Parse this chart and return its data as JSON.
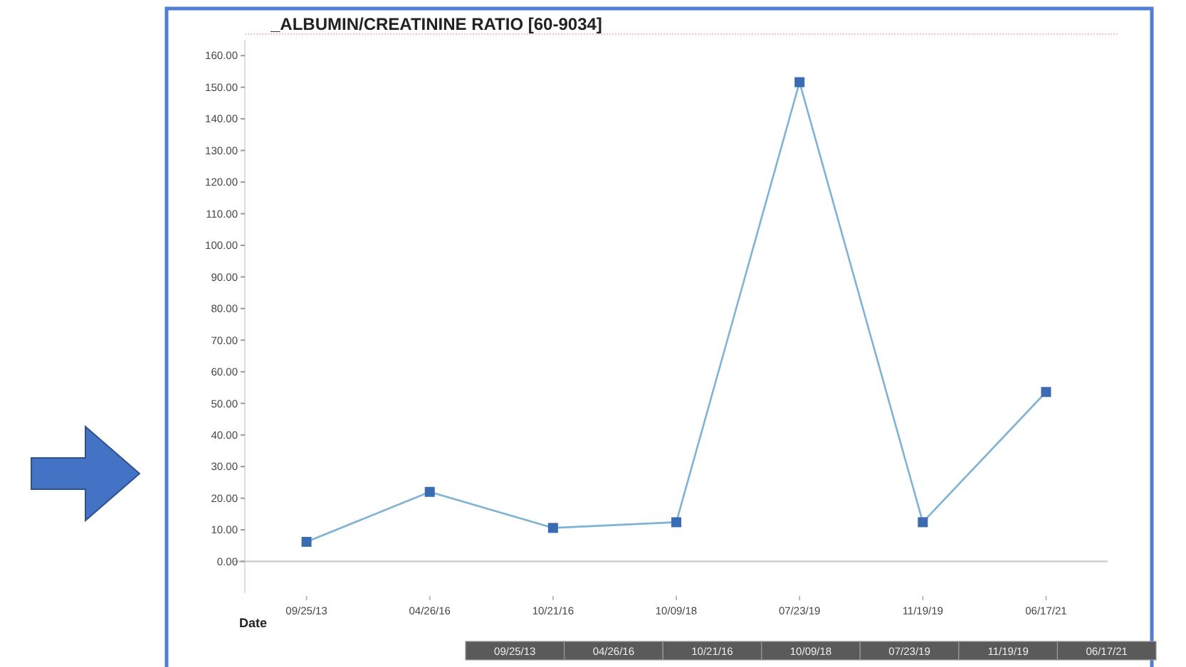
{
  "chart_data": {
    "type": "line",
    "title": "_ALBUMIN/CREATININE RATIO [60-9034]",
    "xlabel": "Date",
    "categories": [
      "09/25/13",
      "04/26/16",
      "10/21/16",
      "10/09/18",
      "07/23/19",
      "11/19/19",
      "06/17/21"
    ],
    "series": [
      {
        "color": "#7fb3d5",
        "values": [
          6.2,
          22,
          10.6,
          12.4,
          151.6,
          12.4,
          53.6
        ]
      }
    ],
    "ylim": [
      -10,
      165
    ],
    "yticks": [
      {
        "value": 0,
        "label": "0.00"
      },
      {
        "value": 10,
        "label": "10.00"
      },
      {
        "value": 20,
        "label": "20.00"
      },
      {
        "value": 30,
        "label": "30.00"
      },
      {
        "value": 40,
        "label": "40.00"
      },
      {
        "value": 50,
        "label": "50.00"
      },
      {
        "value": 60,
        "label": "60.00"
      },
      {
        "value": 70,
        "label": "70.00"
      },
      {
        "value": 80,
        "label": "80.00"
      },
      {
        "value": 90,
        "label": "90.00"
      },
      {
        "value": 100,
        "label": "100.00"
      },
      {
        "value": 110,
        "label": "110.00"
      },
      {
        "value": 120,
        "label": "120.00"
      },
      {
        "value": 130,
        "label": "130.00"
      },
      {
        "value": 140,
        "label": "140.00"
      },
      {
        "value": 150,
        "label": "150.00"
      },
      {
        "value": 160,
        "label": "160.00"
      }
    ],
    "ref_lines": [
      {
        "axis": "y",
        "value": 0,
        "color": "#d0d0d0"
      }
    ],
    "marker": "square"
  }
}
